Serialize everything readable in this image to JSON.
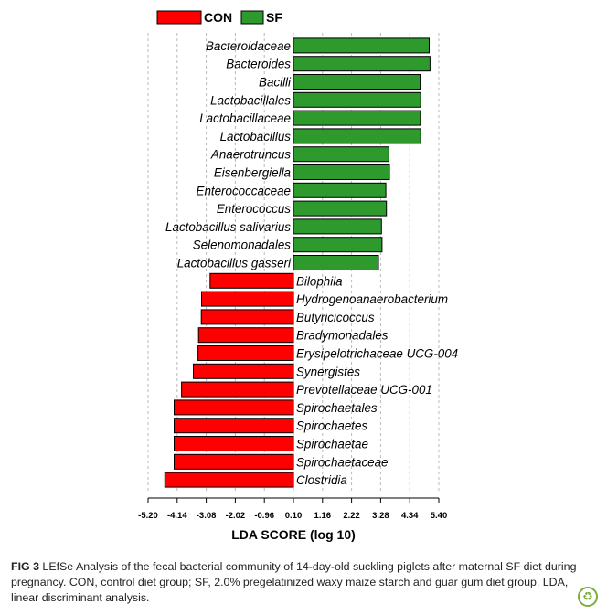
{
  "chart_data": {
    "type": "bar",
    "orientation": "horizontal",
    "xlabel": "LDA SCORE (log 10)",
    "xlim": [
      -5.2,
      5.4
    ],
    "xticks": [
      -5.2,
      -4.14,
      -3.08,
      -2.02,
      -0.96,
      0.1,
      1.16,
      2.22,
      3.28,
      4.34,
      5.4
    ],
    "xtick_labels": [
      "-5.20",
      "-4.14",
      "-3.08",
      "-2.02",
      "-0.96",
      "0.10",
      "1.16",
      "2.22",
      "3.28",
      "4.34",
      "5.40"
    ],
    "grid": "vertical dashed",
    "legend_placement": "top-left",
    "series": [
      {
        "name": "CON",
        "color": "#ff0000"
      },
      {
        "name": "SF",
        "color": "#2e9a2e"
      }
    ],
    "categories": [
      "Bacteroidaceae",
      "Bacteroides",
      "Bacilli",
      "Lactobacillales",
      "Lactobacillaceae",
      "Lactobacillus",
      "Anaerotruncus",
      "Eisenbergiella",
      "Enterococcaceae",
      "Enterococcus",
      "Lactobacillus salivarius",
      "Selenomonadales",
      "Lactobacillus gasseri",
      "Bilophila",
      "Hydrogenoanaerobacterium",
      "Butyricicoccus",
      "Bradymonadales",
      "Erysipelotrichaceae UCG-004",
      "Synergistes",
      "Prevotellaceae UCG-001",
      "Spirochaetales",
      "Spirochaetes",
      "Spirochaetae",
      "Spirochaetaceae",
      "Clostridia"
    ],
    "values": [
      5.05,
      5.08,
      4.72,
      4.74,
      4.73,
      4.74,
      3.58,
      3.6,
      3.47,
      3.49,
      3.31,
      3.33,
      3.2,
      -2.94,
      -3.25,
      -3.26,
      -3.36,
      -3.38,
      -3.55,
      -3.98,
      -4.25,
      -4.25,
      -4.25,
      -4.25,
      -4.59
    ],
    "groups": [
      "SF",
      "SF",
      "SF",
      "SF",
      "SF",
      "SF",
      "SF",
      "SF",
      "SF",
      "SF",
      "SF",
      "SF",
      "SF",
      "CON",
      "CON",
      "CON",
      "CON",
      "CON",
      "CON",
      "CON",
      "CON",
      "CON",
      "CON",
      "CON",
      "CON"
    ]
  },
  "caption": {
    "label": "FIG 3",
    "text": " LEfSe Analysis of the fecal bacterial community of 14-day-old suckling piglets after maternal SF diet during pregnancy. CON, control diet group; SF, 2.0% pregelatinized waxy maize starch and guar gum diet group. LDA, linear discriminant analysis."
  },
  "badge_icon": "leaf-icon",
  "badge_glyph": "♻"
}
